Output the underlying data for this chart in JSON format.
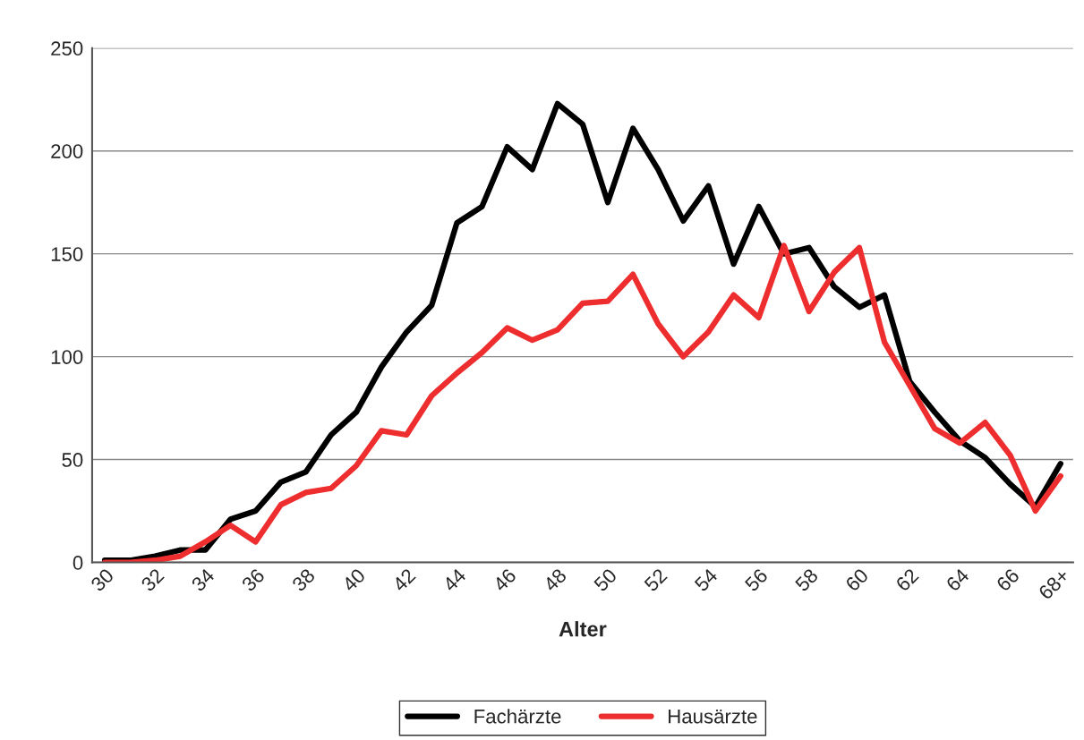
{
  "chart_data": {
    "type": "line",
    "xlabel": "Alter",
    "categories": [
      "30",
      null,
      "32",
      null,
      "34",
      null,
      "36",
      null,
      "38",
      null,
      "40",
      null,
      "42",
      null,
      "44",
      null,
      "46",
      null,
      "48",
      null,
      "50",
      null,
      "52",
      null,
      "54",
      null,
      "56",
      null,
      "58",
      null,
      "60",
      null,
      "62",
      null,
      "64",
      null,
      "66",
      null,
      "68+"
    ],
    "series": [
      {
        "name": "Fachärzte",
        "color": "#000000",
        "values": [
          1,
          1,
          3,
          6,
          6,
          21,
          25,
          39,
          44,
          62,
          73,
          95,
          112,
          125,
          165,
          173,
          202,
          191,
          223,
          213,
          175,
          211,
          191,
          166,
          183,
          145,
          173,
          150,
          153,
          134,
          124,
          130,
          88,
          73,
          59,
          51,
          38,
          27,
          48
        ]
      },
      {
        "name": "Hausärzte",
        "color": "#ee2e2e",
        "values": [
          0,
          0,
          1,
          3,
          10,
          18,
          10,
          28,
          34,
          36,
          47,
          64,
          62,
          81,
          92,
          102,
          114,
          108,
          113,
          126,
          127,
          140,
          116,
          100,
          112,
          130,
          119,
          154,
          122,
          141,
          153,
          107,
          86,
          65,
          58,
          68,
          52,
          25,
          42
        ]
      }
    ],
    "ylim": [
      0,
      250
    ],
    "yticks": [
      0,
      50,
      100,
      150,
      200,
      250
    ],
    "grid": "y",
    "legend": "bottom",
    "marker": "none",
    "line_style": "solid"
  }
}
